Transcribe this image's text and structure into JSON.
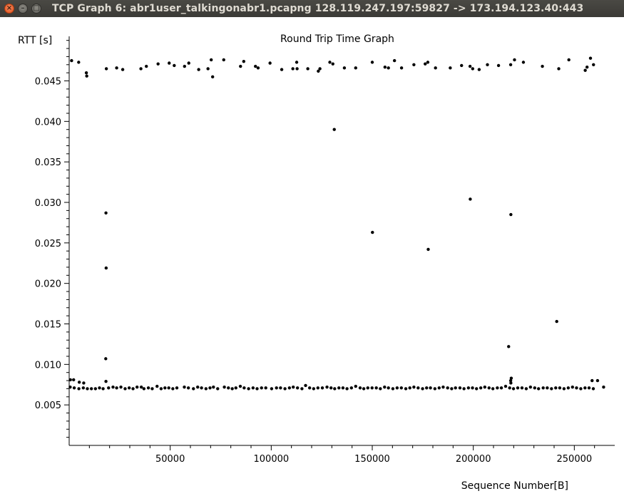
{
  "window": {
    "title": "TCP Graph 6: abr1user_talkingonabr1.pcapng 128.119.247.197:59827 -> 173.194.123.40:443",
    "close_glyph": "×",
    "minimize_glyph": "–",
    "maximize_glyph": "□"
  },
  "chart_data": {
    "type": "scatter",
    "title": "Round Trip Time Graph",
    "xlabel": "Sequence Number[B]",
    "ylabel": "RTT [s]",
    "xlim": [
      0,
      270000
    ],
    "ylim": [
      0,
      0.0505
    ],
    "x_ticks": [
      50000,
      100000,
      150000,
      200000,
      250000
    ],
    "x_tick_labels": [
      "50000",
      "100000",
      "150000",
      "200000",
      "250000"
    ],
    "y_ticks": [
      0.005,
      0.01,
      0.015,
      0.02,
      0.025,
      0.03,
      0.035,
      0.04,
      0.045
    ],
    "y_tick_labels": [
      "0.005",
      "0.010",
      "0.015",
      "0.020",
      "0.025",
      "0.030",
      "0.035",
      "0.040",
      "0.045"
    ],
    "grid": false,
    "point_color": "#000000",
    "series": [
      {
        "points": [
          [
            1200,
            0.0475
          ],
          [
            4700,
            0.0473
          ],
          [
            8500,
            0.046
          ],
          [
            8700,
            0.0456
          ],
          [
            18400,
            0.0465
          ],
          [
            23500,
            0.0466
          ],
          [
            26500,
            0.0464
          ],
          [
            35500,
            0.0465
          ],
          [
            38200,
            0.0468
          ],
          [
            44000,
            0.0471
          ],
          [
            49500,
            0.0472
          ],
          [
            52000,
            0.0469
          ],
          [
            57100,
            0.0468
          ],
          [
            59200,
            0.0472
          ],
          [
            64100,
            0.0464
          ],
          [
            68700,
            0.0465
          ],
          [
            70300,
            0.0476
          ],
          [
            71000,
            0.0455
          ],
          [
            76500,
            0.0476
          ],
          [
            84800,
            0.0468
          ],
          [
            86400,
            0.0474
          ],
          [
            92200,
            0.0468
          ],
          [
            93500,
            0.0466
          ],
          [
            99400,
            0.0472
          ],
          [
            105200,
            0.0464
          ],
          [
            110700,
            0.0465
          ],
          [
            112600,
            0.0473
          ],
          [
            112800,
            0.0465
          ],
          [
            118100,
            0.0465
          ],
          [
            123300,
            0.0462
          ],
          [
            124100,
            0.0465
          ],
          [
            129000,
            0.0473
          ],
          [
            130500,
            0.0471
          ],
          [
            136200,
            0.0466
          ],
          [
            141800,
            0.0466
          ],
          [
            150000,
            0.0473
          ],
          [
            156300,
            0.0467
          ],
          [
            158000,
            0.0466
          ],
          [
            161000,
            0.0475
          ],
          [
            164500,
            0.0466
          ],
          [
            170600,
            0.047
          ],
          [
            176200,
            0.0471
          ],
          [
            177500,
            0.0473
          ],
          [
            181300,
            0.0466
          ],
          [
            188600,
            0.0466
          ],
          [
            194200,
            0.0469
          ],
          [
            198400,
            0.0468
          ],
          [
            199700,
            0.0465
          ],
          [
            202900,
            0.0464
          ],
          [
            207000,
            0.047
          ],
          [
            212500,
            0.0469
          ],
          [
            218500,
            0.047
          ],
          [
            220400,
            0.0476
          ],
          [
            224800,
            0.0473
          ],
          [
            234200,
            0.0468
          ],
          [
            242300,
            0.0465
          ],
          [
            247300,
            0.0476
          ],
          [
            255400,
            0.0463
          ],
          [
            256300,
            0.0467
          ],
          [
            258000,
            0.0478
          ],
          [
            259500,
            0.047
          ],
          [
            131200,
            0.039
          ],
          [
            18200,
            0.0287
          ],
          [
            18300,
            0.0219
          ],
          [
            18100,
            0.0107
          ],
          [
            150100,
            0.0263
          ],
          [
            177700,
            0.0242
          ],
          [
            198500,
            0.0304
          ],
          [
            218600,
            0.0285
          ],
          [
            241300,
            0.0153
          ],
          [
            217500,
            0.0122
          ],
          [
            218800,
            0.0083
          ],
          [
            218500,
            0.008
          ],
          [
            218600,
            0.0077
          ],
          [
            18200,
            0.0079
          ],
          [
            600,
            0.0081
          ],
          [
            2200,
            0.0081
          ],
          [
            5000,
            0.0078
          ],
          [
            7200,
            0.0077
          ],
          [
            258800,
            0.008
          ],
          [
            261500,
            0.008
          ],
          [
            500,
            0.0072
          ],
          [
            2500,
            0.0071
          ],
          [
            4800,
            0.007
          ],
          [
            7000,
            0.0071
          ],
          [
            9000,
            0.007
          ],
          [
            11000,
            0.007
          ],
          [
            13000,
            0.007
          ],
          [
            15000,
            0.0071
          ],
          [
            16800,
            0.007
          ],
          [
            19500,
            0.0071
          ],
          [
            21700,
            0.0072
          ],
          [
            23500,
            0.0071
          ],
          [
            25600,
            0.0072
          ],
          [
            27700,
            0.007
          ],
          [
            29700,
            0.0071
          ],
          [
            31600,
            0.007
          ],
          [
            33600,
            0.0072
          ],
          [
            35700,
            0.0072
          ],
          [
            37000,
            0.007
          ],
          [
            39200,
            0.0071
          ],
          [
            41100,
            0.007
          ],
          [
            43500,
            0.0073
          ],
          [
            45500,
            0.007
          ],
          [
            47400,
            0.0071
          ],
          [
            49300,
            0.0071
          ],
          [
            51300,
            0.007
          ],
          [
            53300,
            0.0071
          ],
          [
            57000,
            0.0072
          ],
          [
            59000,
            0.0071
          ],
          [
            61500,
            0.007
          ],
          [
            63600,
            0.0072
          ],
          [
            65500,
            0.0071
          ],
          [
            67700,
            0.007
          ],
          [
            69700,
            0.0071
          ],
          [
            71400,
            0.0072
          ],
          [
            73500,
            0.007
          ],
          [
            76800,
            0.0072
          ],
          [
            78800,
            0.0071
          ],
          [
            80700,
            0.007
          ],
          [
            82500,
            0.0071
          ],
          [
            84700,
            0.0073
          ],
          [
            86600,
            0.0071
          ],
          [
            88800,
            0.007
          ],
          [
            91000,
            0.0071
          ],
          [
            93000,
            0.007
          ],
          [
            95200,
            0.0071
          ],
          [
            97300,
            0.0071
          ],
          [
            100200,
            0.007
          ],
          [
            102600,
            0.0071
          ],
          [
            104600,
            0.0071
          ],
          [
            106800,
            0.007
          ],
          [
            109000,
            0.0071
          ],
          [
            110900,
            0.0072
          ],
          [
            113000,
            0.0071
          ],
          [
            115200,
            0.007
          ],
          [
            117000,
            0.0074
          ],
          [
            119000,
            0.0071
          ],
          [
            121000,
            0.007
          ],
          [
            123100,
            0.0071
          ],
          [
            125300,
            0.0071
          ],
          [
            127600,
            0.0072
          ],
          [
            129600,
            0.0071
          ],
          [
            131400,
            0.007
          ],
          [
            133500,
            0.0071
          ],
          [
            135500,
            0.0071
          ],
          [
            137500,
            0.007
          ],
          [
            139700,
            0.0071
          ],
          [
            141800,
            0.0073
          ],
          [
            144000,
            0.0071
          ],
          [
            145800,
            0.007
          ],
          [
            147800,
            0.0071
          ],
          [
            149900,
            0.0071
          ],
          [
            152000,
            0.0071
          ],
          [
            154000,
            0.007
          ],
          [
            156100,
            0.0072
          ],
          [
            158000,
            0.0071
          ],
          [
            160200,
            0.007
          ],
          [
            162300,
            0.0071
          ],
          [
            164400,
            0.0071
          ],
          [
            166600,
            0.007
          ],
          [
            168600,
            0.0071
          ],
          [
            170600,
            0.0072
          ],
          [
            172700,
            0.0071
          ],
          [
            174900,
            0.007
          ],
          [
            176900,
            0.0071
          ],
          [
            178800,
            0.0071
          ],
          [
            181000,
            0.007
          ],
          [
            183100,
            0.0071
          ],
          [
            185100,
            0.0072
          ],
          [
            187300,
            0.0071
          ],
          [
            189300,
            0.007
          ],
          [
            191200,
            0.0071
          ],
          [
            193400,
            0.0071
          ],
          [
            195400,
            0.007
          ],
          [
            197600,
            0.0071
          ],
          [
            199600,
            0.0071
          ],
          [
            201600,
            0.007
          ],
          [
            203700,
            0.0071
          ],
          [
            205700,
            0.0072
          ],
          [
            207800,
            0.0071
          ],
          [
            209700,
            0.007
          ],
          [
            211900,
            0.0071
          ],
          [
            213900,
            0.0071
          ],
          [
            216000,
            0.0073
          ],
          [
            218000,
            0.0071
          ],
          [
            219900,
            0.007
          ],
          [
            222000,
            0.0071
          ],
          [
            224100,
            0.0071
          ],
          [
            226200,
            0.007
          ],
          [
            228300,
            0.0072
          ],
          [
            230400,
            0.0071
          ],
          [
            232300,
            0.007
          ],
          [
            234600,
            0.0071
          ],
          [
            236600,
            0.0071
          ],
          [
            238700,
            0.007
          ],
          [
            240800,
            0.0071
          ],
          [
            242800,
            0.0071
          ],
          [
            244900,
            0.007
          ],
          [
            247000,
            0.0071
          ],
          [
            249100,
            0.0072
          ],
          [
            251100,
            0.0071
          ],
          [
            253200,
            0.007
          ],
          [
            255300,
            0.0071
          ],
          [
            257300,
            0.0071
          ],
          [
            259400,
            0.007
          ],
          [
            264500,
            0.0072
          ]
        ]
      }
    ]
  }
}
